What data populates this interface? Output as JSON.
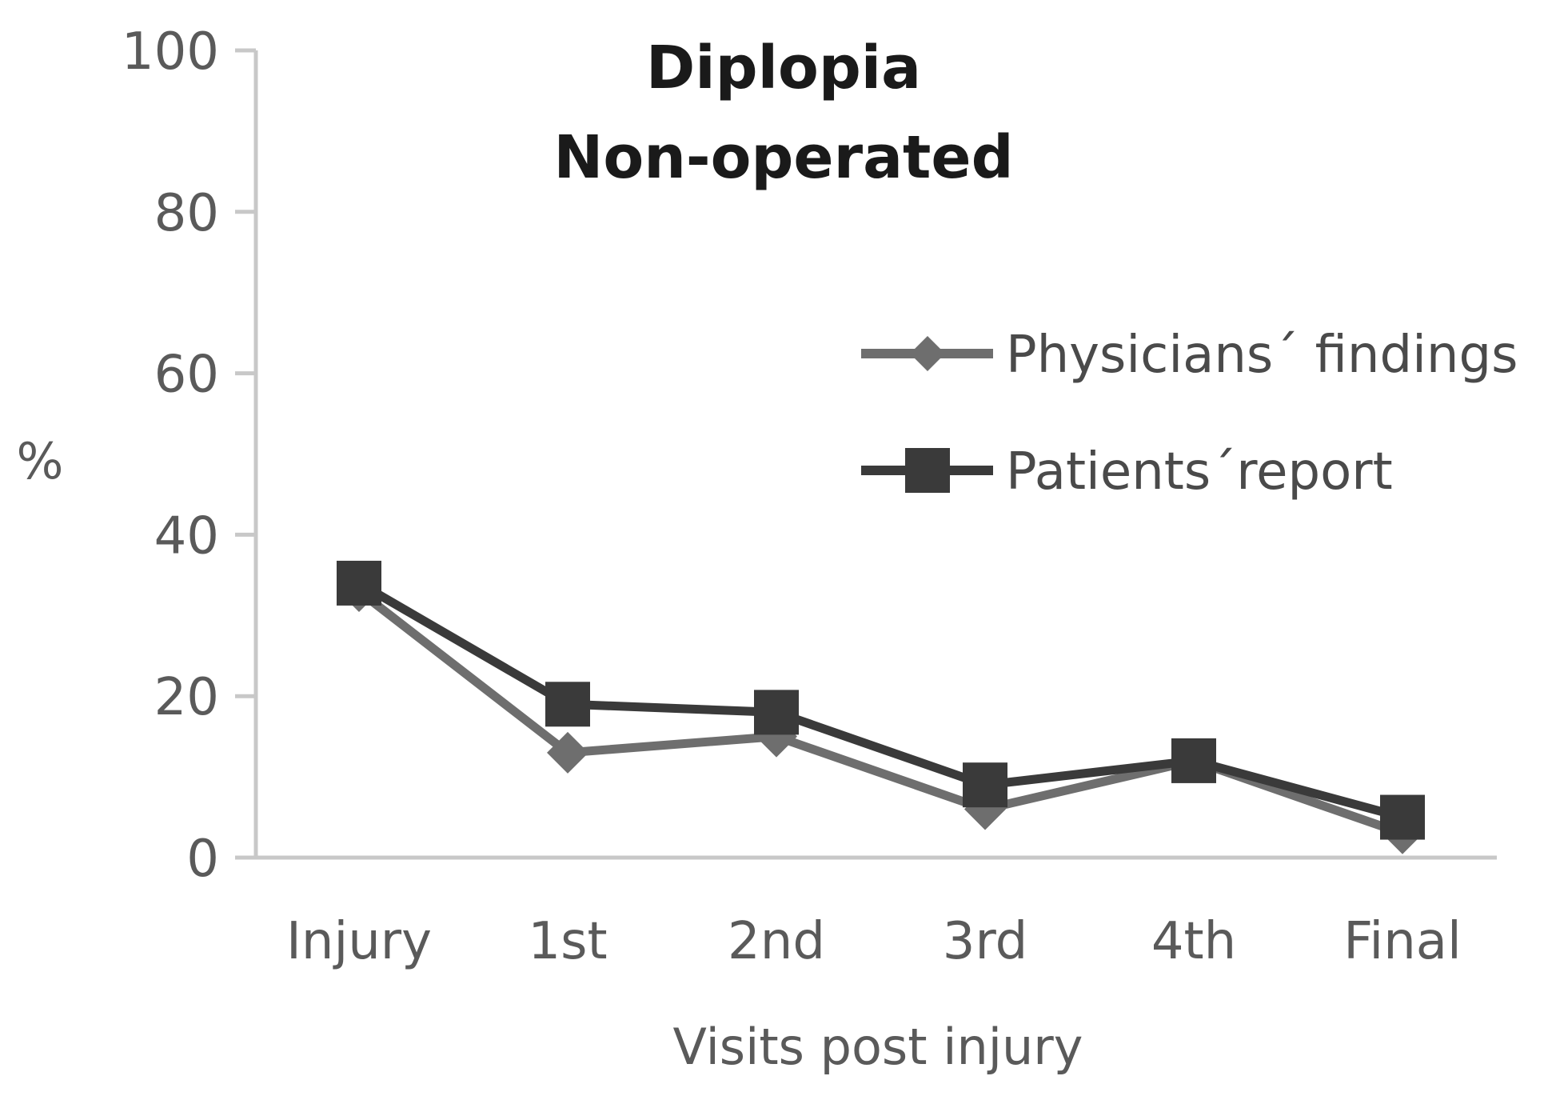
{
  "chart_data": {
    "type": "line",
    "title": [
      "Diplopia",
      "Non-operated"
    ],
    "xlabel": "Visits post injury",
    "ylabel": "%",
    "categories": [
      "Injury",
      "1st",
      "2nd",
      "3rd",
      "4th",
      "Final"
    ],
    "ylim": [
      0,
      100
    ],
    "yticks": [
      "0",
      "20",
      "40",
      "60",
      "80",
      "100"
    ],
    "grid": false,
    "legend_position": "right",
    "series": [
      {
        "name": "Physicians´ findings",
        "marker": "diamond",
        "color": "#6e6e6e",
        "values": [
          33,
          13,
          15,
          6,
          12,
          3
        ]
      },
      {
        "name": "Patients´report",
        "marker": "square",
        "color": "#3a3a3a",
        "values": [
          34,
          19,
          18,
          9,
          12,
          5
        ]
      }
    ]
  }
}
